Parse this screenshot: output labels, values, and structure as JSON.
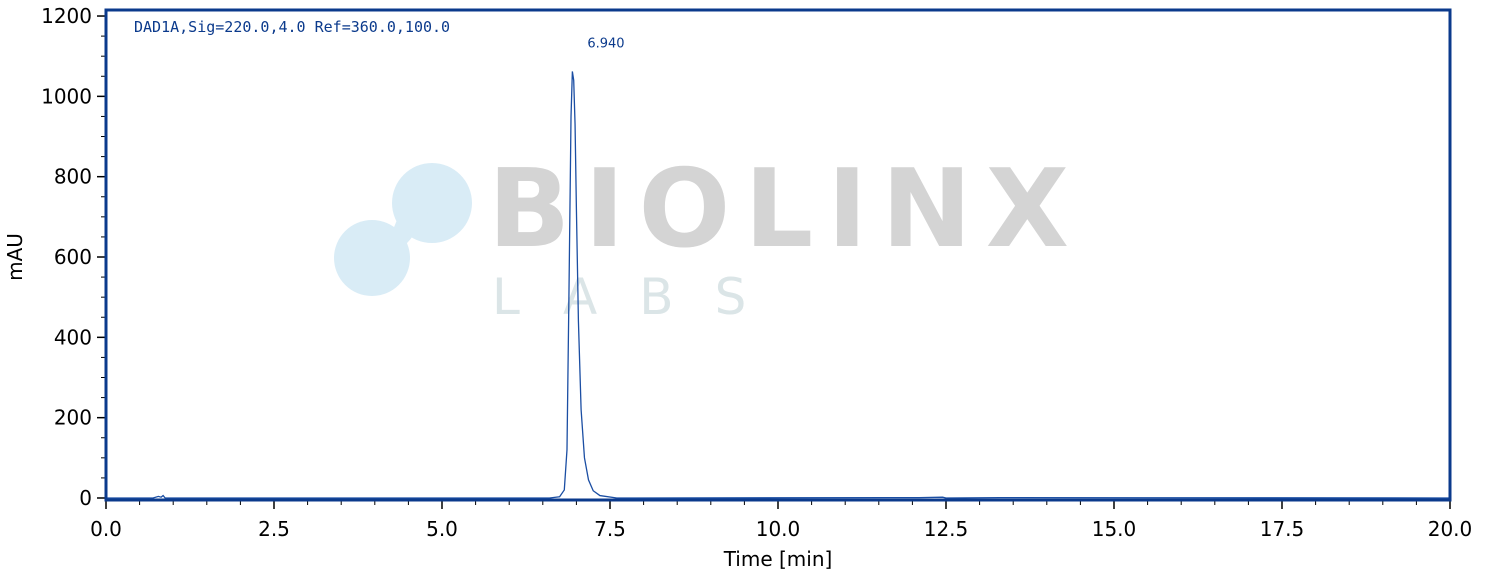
{
  "colors": {
    "frame": "#0b3a8c",
    "trace": "#1b4ea3",
    "watermark_text": "#d4d4d4",
    "watermark_logo": "#d9ecf6",
    "watermark_sub": "#dbe5e7"
  },
  "watermark": {
    "brand": "BIOLINX",
    "sub": "LABS"
  },
  "chart_data": {
    "type": "line",
    "signal_label": "DAD1A,Sig=220.0,4.0 Ref=360.0,100.0",
    "xlabel": "Time [min]",
    "ylabel": "mAU",
    "xlim": [
      0,
      20
    ],
    "ylim": [
      -5,
      1215
    ],
    "x_ticks": [
      "0.0",
      "2.5",
      "5.0",
      "7.5",
      "10.0",
      "12.5",
      "15.0",
      "17.5",
      "20.0"
    ],
    "y_ticks": [
      "0",
      "200",
      "400",
      "600",
      "800",
      "1000",
      "1200"
    ],
    "grid": false,
    "series": [
      {
        "x": [
          0,
          0.7,
          0.78,
          0.82,
          0.85,
          0.88,
          6.6,
          6.75,
          6.82,
          6.86,
          6.89,
          6.92,
          6.94,
          6.96,
          6.98,
          7.0,
          7.03,
          7.07,
          7.12,
          7.18,
          7.25,
          7.35,
          7.6,
          12.1,
          12.45,
          12.5,
          13.3,
          20.0
        ],
        "y": [
          0,
          0,
          4,
          2,
          6,
          0,
          0,
          3,
          20,
          120,
          520,
          950,
          1062,
          1040,
          930,
          720,
          440,
          220,
          100,
          45,
          18,
          6,
          0,
          1,
          2,
          0,
          1,
          0
        ]
      }
    ],
    "annotations": [
      {
        "text": "6.940",
        "x": 6.94,
        "y": 1062
      }
    ]
  }
}
